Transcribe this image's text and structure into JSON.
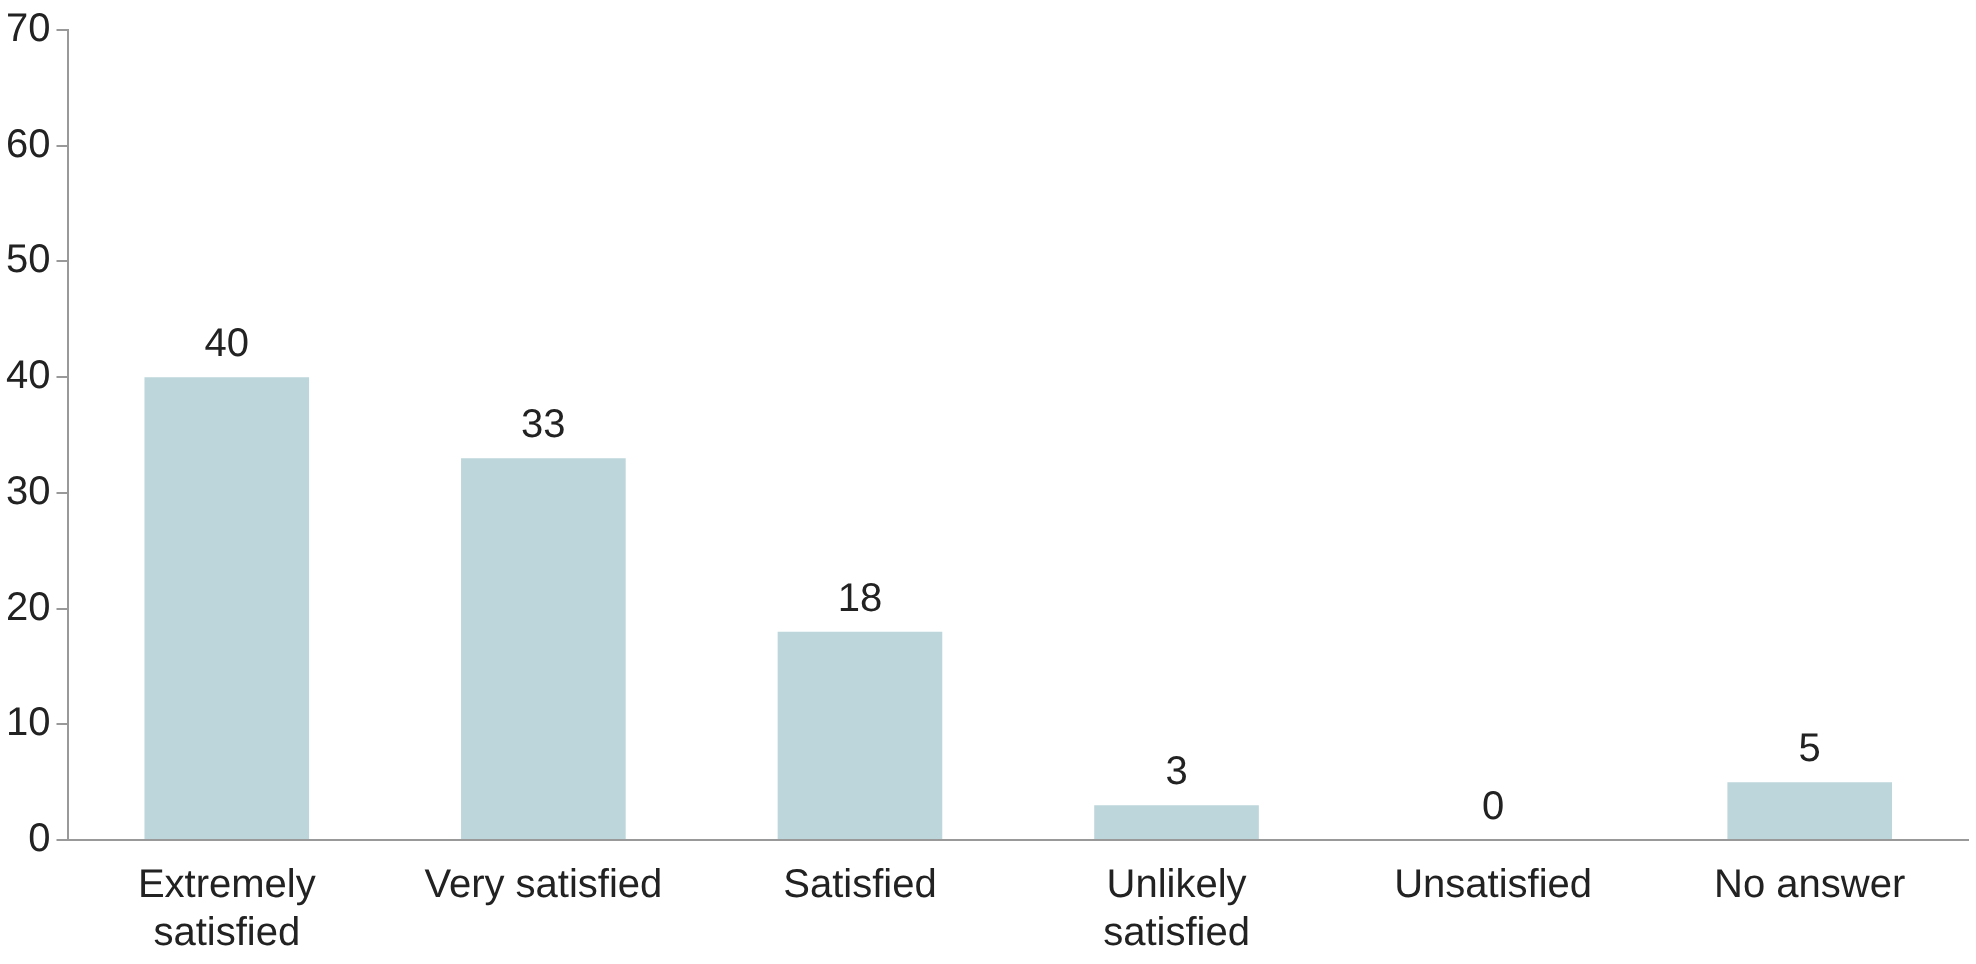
{
  "chart_data": {
    "type": "bar",
    "categories": [
      "Extremely satisfied",
      "Very satisfied",
      "Satisfied",
      "Unlikely satisfied",
      "Unsatisfied",
      "No answer"
    ],
    "values": [
      40,
      33,
      18,
      3,
      0,
      5
    ],
    "color": "#bdd6db",
    "ylim": [
      0,
      70
    ],
    "yticks": [
      0,
      10,
      20,
      30,
      40,
      50,
      60,
      70
    ],
    "grid": false,
    "data_labels": true
  }
}
